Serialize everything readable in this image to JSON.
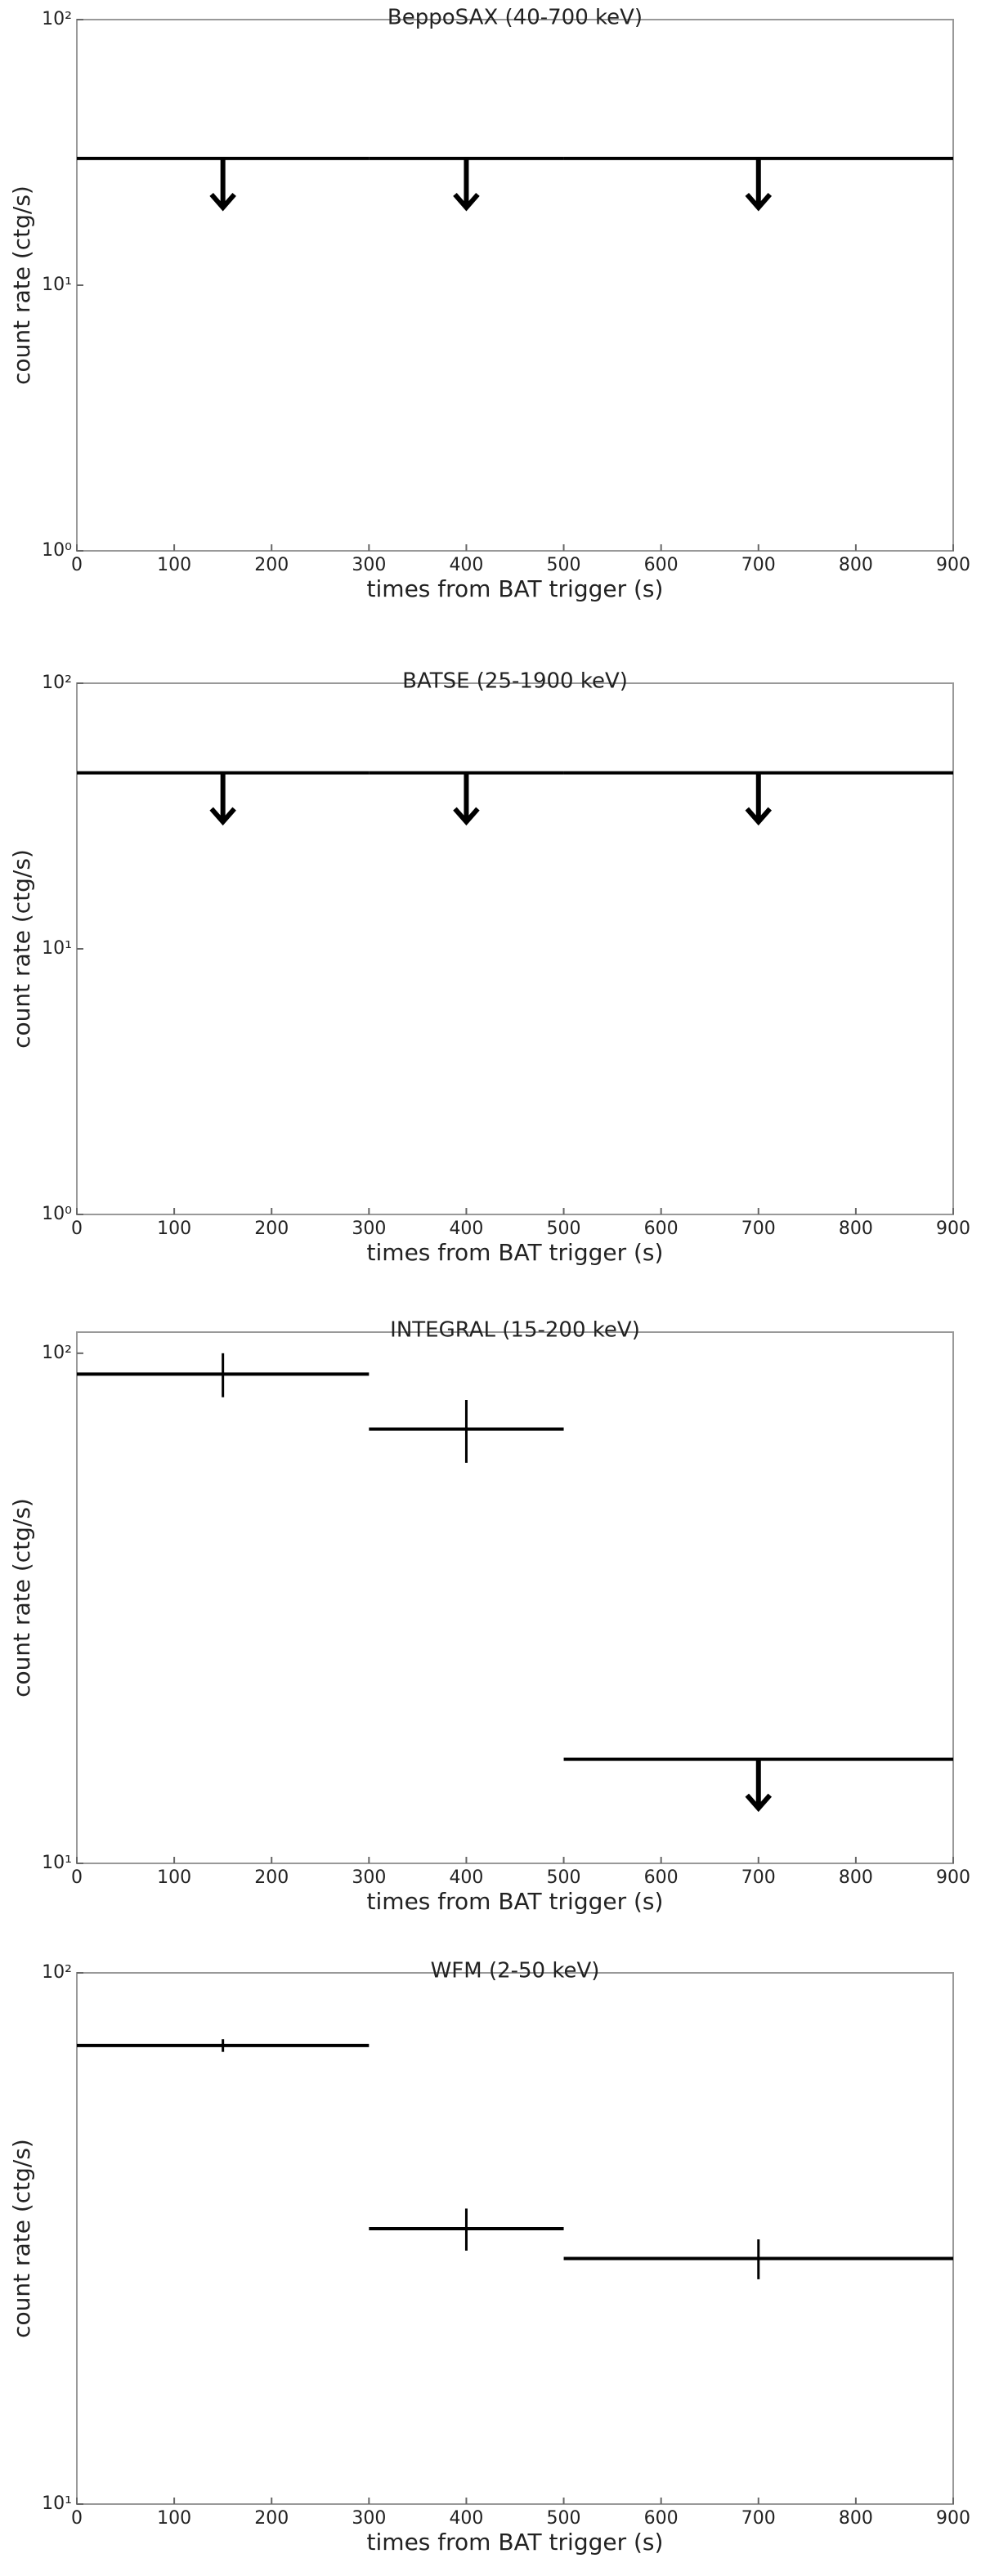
{
  "chart_data": [
    {
      "type": "segments",
      "title": "BeppoSAX (40-700 keV)",
      "x_label": "times from BAT trigger (s)",
      "y_label": "count rate (ctg/s)",
      "x0": [
        0,
        300,
        500
      ],
      "x1": [
        300,
        500,
        900
      ],
      "values": [
        30,
        30,
        30
      ],
      "errors": [
        null,
        null,
        null
      ],
      "upper_limits": [
        true,
        true,
        true
      ],
      "color": "#000000",
      "y_scale": "log",
      "xlim": [
        0,
        900
      ],
      "xticks": [
        0,
        100,
        200,
        300,
        400,
        500,
        600,
        700,
        800,
        900
      ],
      "ylim": [
        1,
        100
      ],
      "yticks": [
        {
          "value": 1,
          "label": "10⁰"
        },
        {
          "value": 10,
          "label": "10¹"
        },
        {
          "value": 100,
          "label": "10²"
        }
      ]
    },
    {
      "type": "segments",
      "title": "BATSE (25-1900 keV)",
      "x_label": "times from BAT trigger (s)",
      "y_label": "count rate (ctg/s)",
      "x0": [
        0,
        300,
        500
      ],
      "x1": [
        300,
        500,
        900
      ],
      "values": [
        46,
        46,
        46
      ],
      "errors": [
        null,
        null,
        null
      ],
      "upper_limits": [
        true,
        true,
        true
      ],
      "color": "#000000",
      "y_scale": "log",
      "xlim": [
        0,
        900
      ],
      "xticks": [
        0,
        100,
        200,
        300,
        400,
        500,
        600,
        700,
        800,
        900
      ],
      "ylim": [
        1,
        100
      ],
      "yticks": [
        {
          "value": 1,
          "label": "10⁰"
        },
        {
          "value": 10,
          "label": "10¹"
        },
        {
          "value": 100,
          "label": "10²"
        }
      ]
    },
    {
      "type": "segments",
      "title": "INTEGRAL (15-200 keV)",
      "x_label": "times from BAT trigger (s)",
      "y_label": "count rate (ctg/s)",
      "x0": [
        0,
        300,
        500
      ],
      "x1": [
        300,
        500,
        900
      ],
      "values": [
        91,
        71,
        16
      ],
      "errors": [
        9,
        10,
        null
      ],
      "upper_limits": [
        false,
        false,
        true
      ],
      "color": "#000000",
      "y_scale": "log",
      "xlim": [
        0,
        900
      ],
      "xticks": [
        0,
        100,
        200,
        300,
        400,
        500,
        600,
        700,
        800,
        900
      ],
      "ylim": [
        10,
        110
      ],
      "yticks": [
        {
          "value": 10,
          "label": "10¹"
        },
        {
          "value": 100,
          "label": "10²"
        }
      ]
    },
    {
      "type": "segments",
      "title": "WFM (2-50 keV)",
      "x_label": "times from BAT trigger (s)",
      "y_label": "count rate (ctg/s)",
      "x0": [
        0,
        300,
        500
      ],
      "x1": [
        300,
        500,
        900
      ],
      "values": [
        73,
        33,
        29
      ],
      "errors": [
        2,
        3,
        2.5
      ],
      "upper_limits": [
        false,
        false,
        false
      ],
      "color": "#000000",
      "y_scale": "log",
      "xlim": [
        0,
        900
      ],
      "xticks": [
        0,
        100,
        200,
        300,
        400,
        500,
        600,
        700,
        800,
        900
      ],
      "ylim": [
        10,
        100
      ],
      "yticks": [
        {
          "value": 10,
          "label": "10¹"
        },
        {
          "value": 100,
          "label": "10²"
        }
      ]
    }
  ]
}
